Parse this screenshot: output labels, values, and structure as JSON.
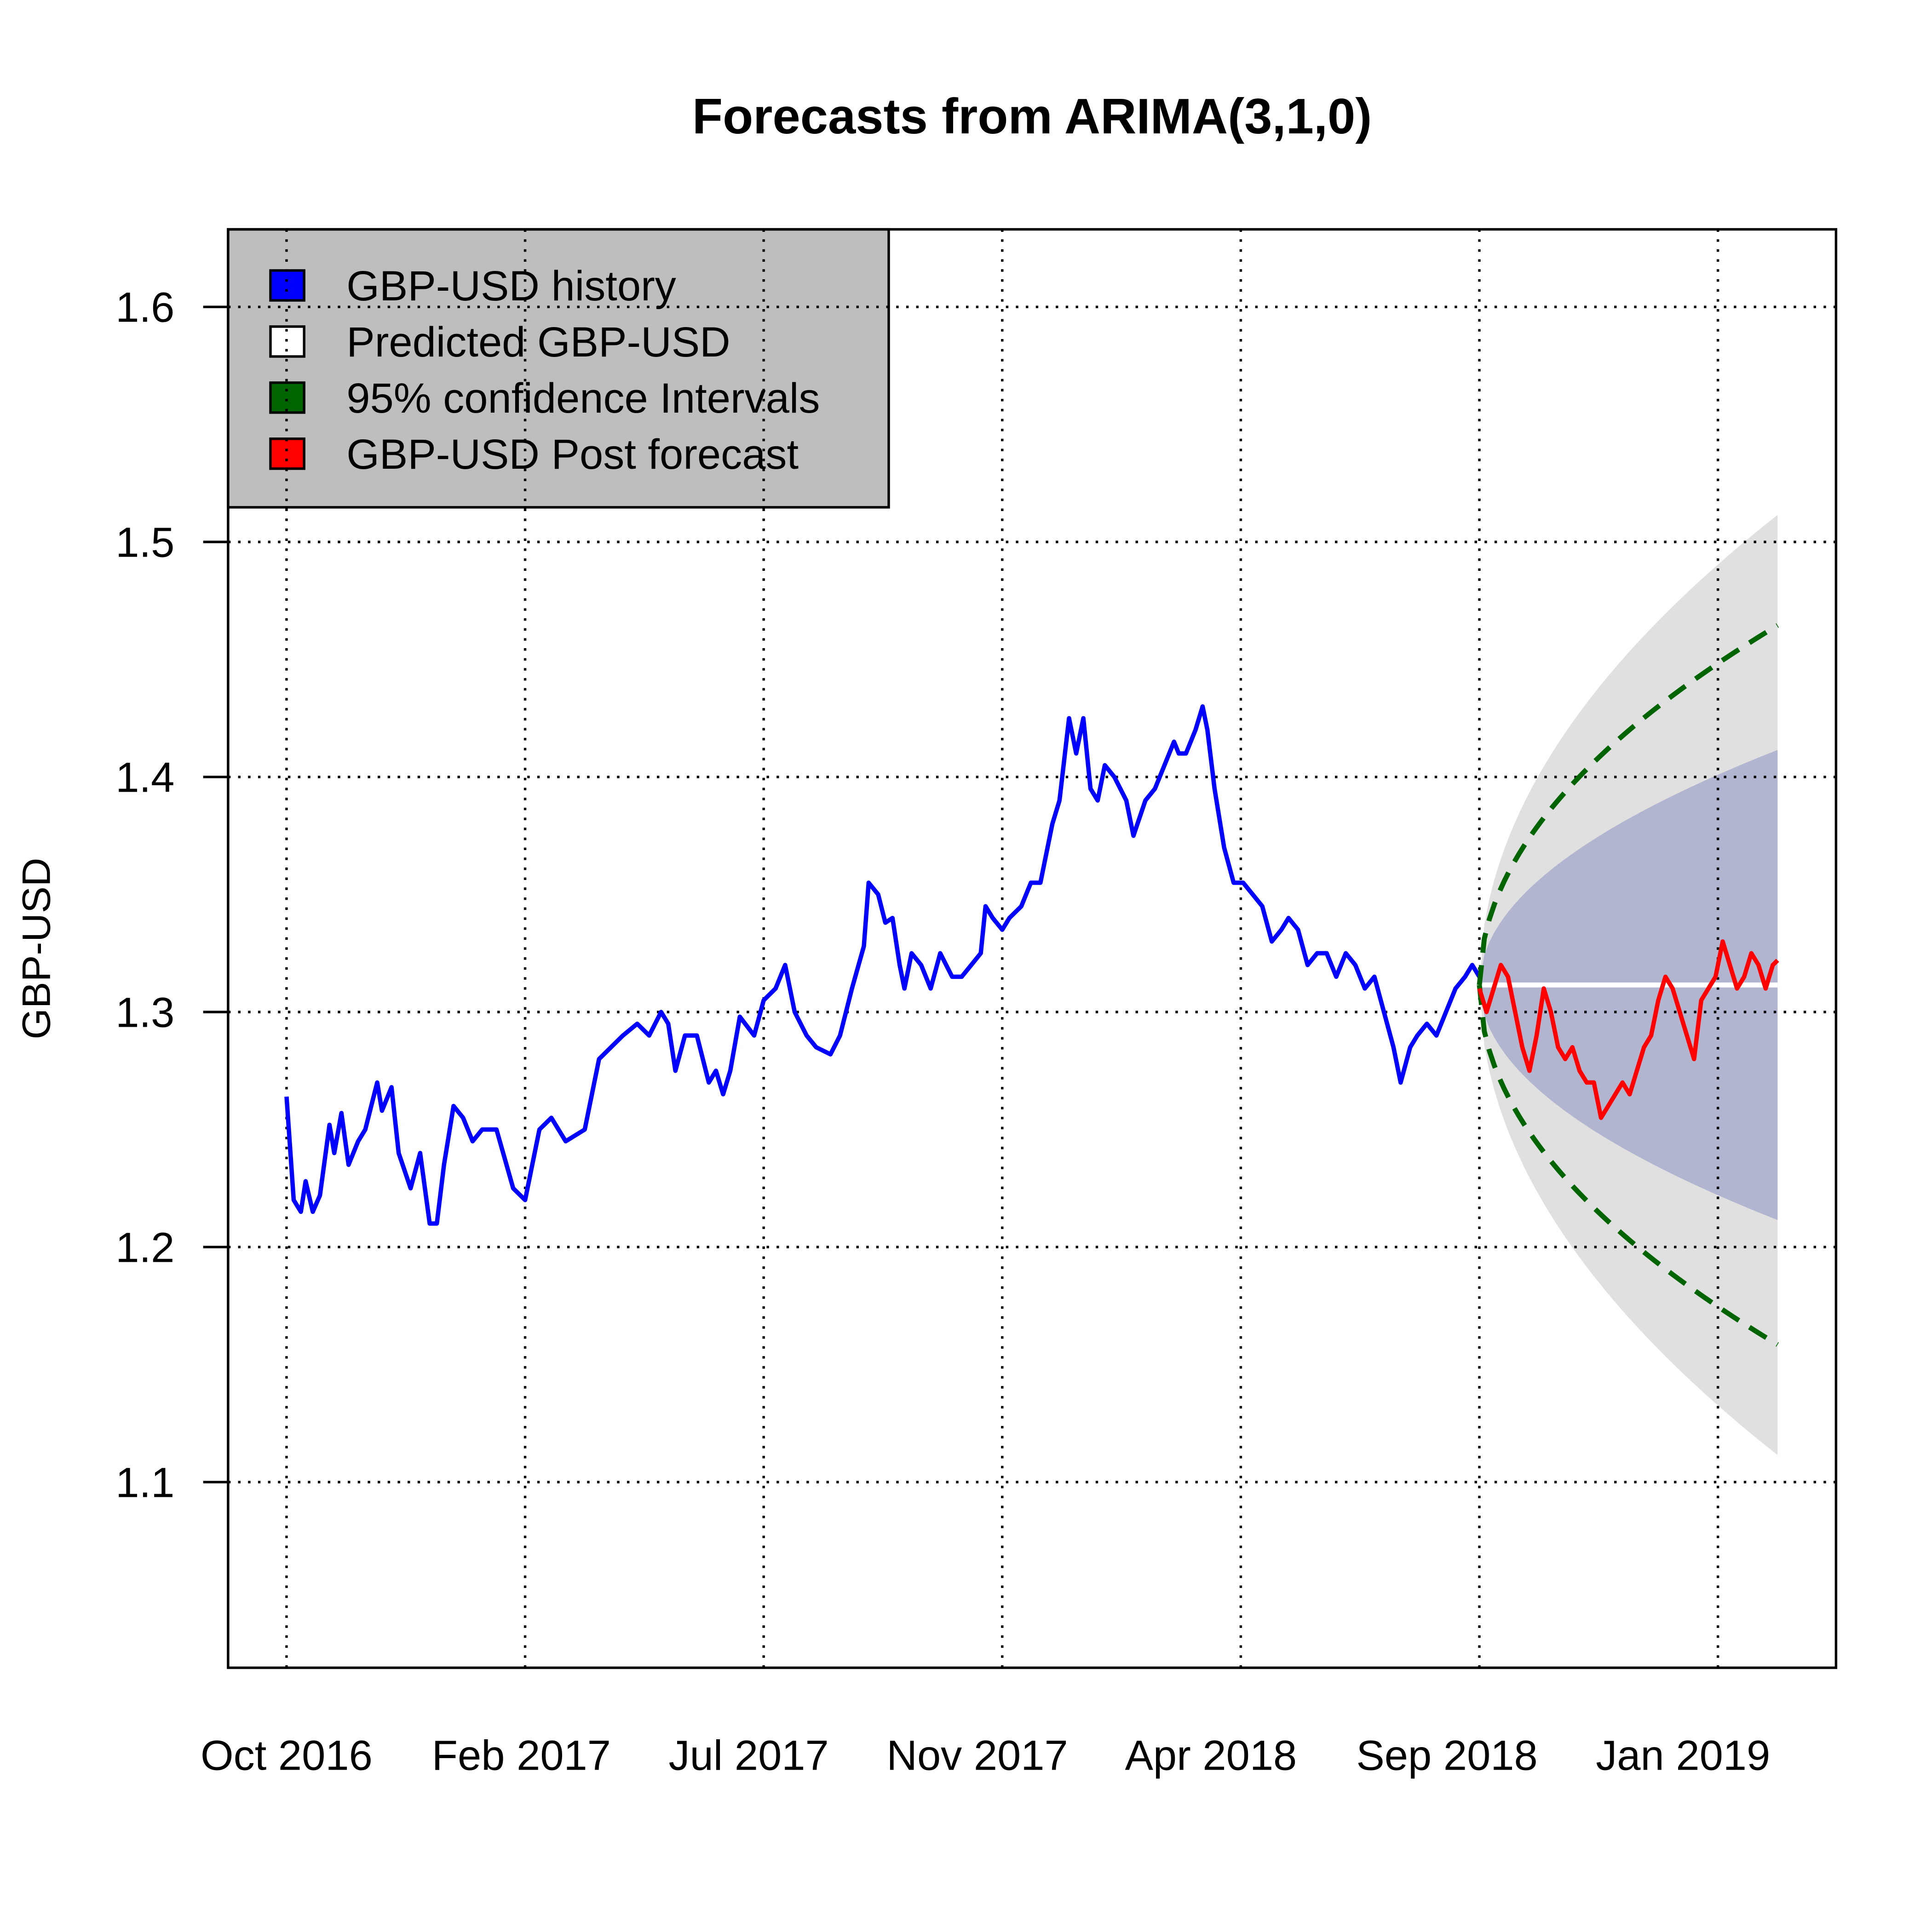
{
  "chart_data": {
    "type": "line",
    "title": "Forecasts from ARIMA(3,1,0)",
    "xlabel": "",
    "ylabel": "GBP-USD",
    "ylim": [
      1.021,
      1.633
    ],
    "xlim": [
      -24.5,
      649.5
    ],
    "grid": true,
    "y_ticks": [
      1.1,
      1.2,
      1.3,
      1.4,
      1.5,
      1.6
    ],
    "y_tick_labels": [
      "1.1",
      "1.2",
      "1.3",
      "1.4",
      "1.5",
      "1.6"
    ],
    "x_ticks": [
      0,
      100,
      200,
      300,
      400,
      500,
      600
    ],
    "x_tick_labels": [
      "Oct 2016",
      "Feb 2017",
      "Jul 2017",
      "Nov 2017",
      "Apr 2018",
      "Sep 2018",
      "Jan 2019"
    ],
    "legend": {
      "placement": "top-left",
      "background": "#BEBEBE",
      "entries": [
        {
          "label": "GBP-USD  history",
          "color": "#0000FF"
        },
        {
          "label": "Predicted  GBP-USD",
          "color": "#FFFFFF"
        },
        {
          "label": "95% confidence Intervals",
          "color": "#006400"
        },
        {
          "label": "GBP-USD  Post forecast",
          "color": "#FF0000"
        }
      ]
    },
    "history": {
      "name": "GBP-USD history",
      "color": "#0000FF",
      "x": [
        0,
        3,
        6,
        8,
        11,
        14,
        18,
        20,
        23,
        26,
        30,
        33,
        38,
        40,
        44,
        47,
        52,
        56,
        60,
        63,
        66,
        70,
        74,
        78,
        82,
        88,
        95,
        100,
        106,
        111,
        117,
        125,
        131,
        136,
        141,
        147,
        152,
        157,
        160,
        163,
        167,
        172,
        177,
        180,
        183,
        186,
        190,
        196,
        200,
        205,
        209,
        213,
        218,
        222,
        228,
        232,
        237,
        242,
        244,
        248,
        251,
        254,
        257,
        259,
        262,
        266,
        270,
        274,
        279,
        283,
        287,
        291,
        293,
        296,
        300,
        303,
        308,
        312,
        316,
        321,
        324,
        328,
        331,
        334,
        337,
        340,
        343,
        347,
        352,
        355,
        360,
        364,
        368,
        372,
        374,
        377,
        381,
        384,
        386,
        389,
        393,
        397,
        401,
        405,
        409,
        413,
        417,
        420,
        424,
        428,
        432,
        436,
        440,
        444,
        448,
        452,
        456,
        460,
        464,
        467,
        471,
        474,
        478,
        482,
        486,
        490,
        494,
        497,
        500
      ],
      "y": [
        1.264,
        1.22,
        1.215,
        1.228,
        1.215,
        1.222,
        1.252,
        1.24,
        1.257,
        1.235,
        1.245,
        1.25,
        1.27,
        1.258,
        1.268,
        1.24,
        1.225,
        1.24,
        1.21,
        1.21,
        1.235,
        1.26,
        1.255,
        1.245,
        1.25,
        1.25,
        1.225,
        1.22,
        1.25,
        1.255,
        1.245,
        1.25,
        1.28,
        1.285,
        1.29,
        1.295,
        1.29,
        1.3,
        1.295,
        1.275,
        1.29,
        1.29,
        1.27,
        1.275,
        1.265,
        1.275,
        1.298,
        1.29,
        1.305,
        1.31,
        1.32,
        1.3,
        1.29,
        1.285,
        1.282,
        1.29,
        1.31,
        1.328,
        1.355,
        1.35,
        1.338,
        1.34,
        1.32,
        1.31,
        1.325,
        1.32,
        1.31,
        1.325,
        1.315,
        1.315,
        1.32,
        1.325,
        1.345,
        1.34,
        1.335,
        1.34,
        1.345,
        1.355,
        1.355,
        1.38,
        1.39,
        1.425,
        1.41,
        1.425,
        1.395,
        1.39,
        1.405,
        1.4,
        1.39,
        1.375,
        1.39,
        1.395,
        1.405,
        1.415,
        1.41,
        1.41,
        1.42,
        1.43,
        1.42,
        1.395,
        1.37,
        1.355,
        1.355,
        1.35,
        1.345,
        1.33,
        1.335,
        1.34,
        1.335,
        1.32,
        1.325,
        1.325,
        1.315,
        1.325,
        1.32,
        1.31,
        1.315,
        1.3,
        1.285,
        1.27,
        1.285,
        1.29,
        1.295,
        1.29,
        1.3,
        1.31,
        1.315,
        1.32,
        1.315
      ]
    },
    "post_forecast": {
      "name": "GBP-USD Post forecast",
      "color": "#FF0000",
      "x": [
        500,
        503,
        506,
        509,
        512,
        515,
        518,
        521,
        524,
        527,
        530,
        533,
        536,
        539,
        542,
        545,
        548,
        551,
        554,
        557,
        560,
        563,
        566,
        569,
        572,
        575,
        578,
        581,
        584,
        587,
        590,
        593,
        596,
        599,
        602,
        605,
        608,
        611,
        614,
        617,
        620,
        623,
        625
      ],
      "y": [
        1.31,
        1.3,
        1.31,
        1.32,
        1.315,
        1.3,
        1.285,
        1.275,
        1.29,
        1.31,
        1.3,
        1.285,
        1.28,
        1.285,
        1.275,
        1.27,
        1.27,
        1.255,
        1.26,
        1.265,
        1.27,
        1.265,
        1.275,
        1.285,
        1.29,
        1.305,
        1.315,
        1.31,
        1.3,
        1.29,
        1.28,
        1.305,
        1.31,
        1.315,
        1.33,
        1.32,
        1.31,
        1.315,
        1.325,
        1.32,
        1.31,
        1.32,
        1.322
      ]
    },
    "forecast": {
      "name": "Predicted GBP-USD",
      "color": "#FFFFFF",
      "start": 500,
      "end": 625,
      "mean": 1.3115,
      "band80_halfwidth_at_end": 0.1,
      "band80_color": "#B1B5D0",
      "band95_halfwidth_at_end": 0.2,
      "band95_color": "#E0E0E0",
      "dashed_halfwidth_at_end": 0.153,
      "dashed_color": "#006400"
    }
  }
}
